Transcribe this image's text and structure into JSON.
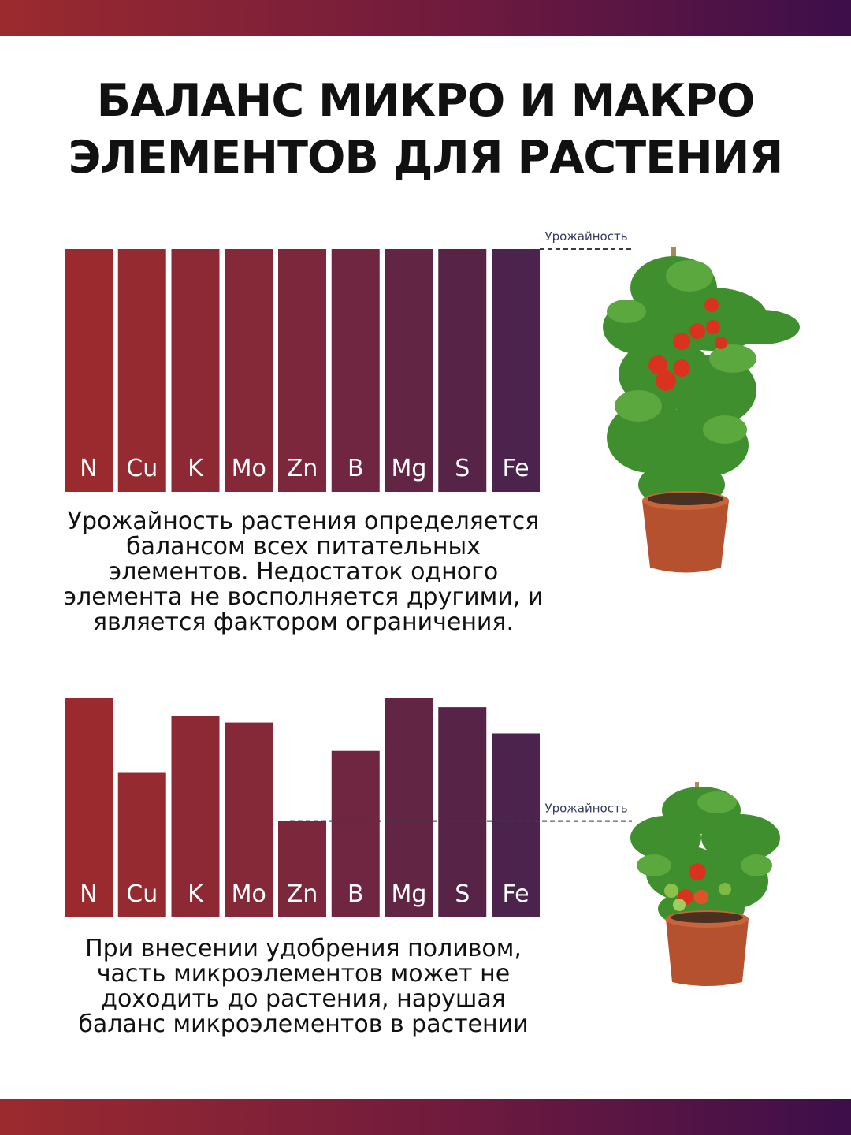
{
  "header": {
    "title_line1": "БАЛАНС МИКРО И МАКРО",
    "title_line2": "ЭЛЕМЕНТОВ ДЛЯ РАСТЕНИЯ"
  },
  "chart_data": [
    {
      "type": "bar",
      "title": "",
      "categories": [
        "N",
        "Cu",
        "K",
        "Mo",
        "Zn",
        "B",
        "Mg",
        "S",
        "Fe"
      ],
      "values": [
        100,
        100,
        100,
        100,
        100,
        100,
        100,
        100,
        100
      ],
      "ylim": [
        0,
        100
      ],
      "reference_line": {
        "label": "Урожайность",
        "value": 100
      },
      "caption": "Урожайность растения определяется балансом всех питательных элементов. Недостаток одного элемента не восполняется другими, и является фактором ограничения."
    },
    {
      "type": "bar",
      "title": "",
      "categories": [
        "N",
        "Cu",
        "K",
        "Mo",
        "Zn",
        "B",
        "Mg",
        "S",
        "Fe"
      ],
      "values": [
        100,
        66,
        92,
        89,
        44,
        76,
        100,
        96,
        84
      ],
      "ylim": [
        0,
        100
      ],
      "reference_line": {
        "label": "Урожайность",
        "value": 44
      },
      "caption": "При внесении удобрения поливом, часть микроэлементов может не доходить до растения, нарушая баланс микроэлементов в растении"
    }
  ],
  "colors": {
    "bar_colors": [
      "#9b2a2e",
      "#952a31",
      "#8d2934",
      "#852838",
      "#7c273c",
      "#702641",
      "#632544",
      "#572447",
      "#4b234d"
    ],
    "ref_line": "#333a5c",
    "band_start": "#9b2a2e",
    "band_end": "#3d0e4a"
  },
  "images": {
    "plant_top": "tomato-plant-with-ripe-fruits",
    "plant_bottom": "tomato-plant-with-fewer-fruits"
  }
}
